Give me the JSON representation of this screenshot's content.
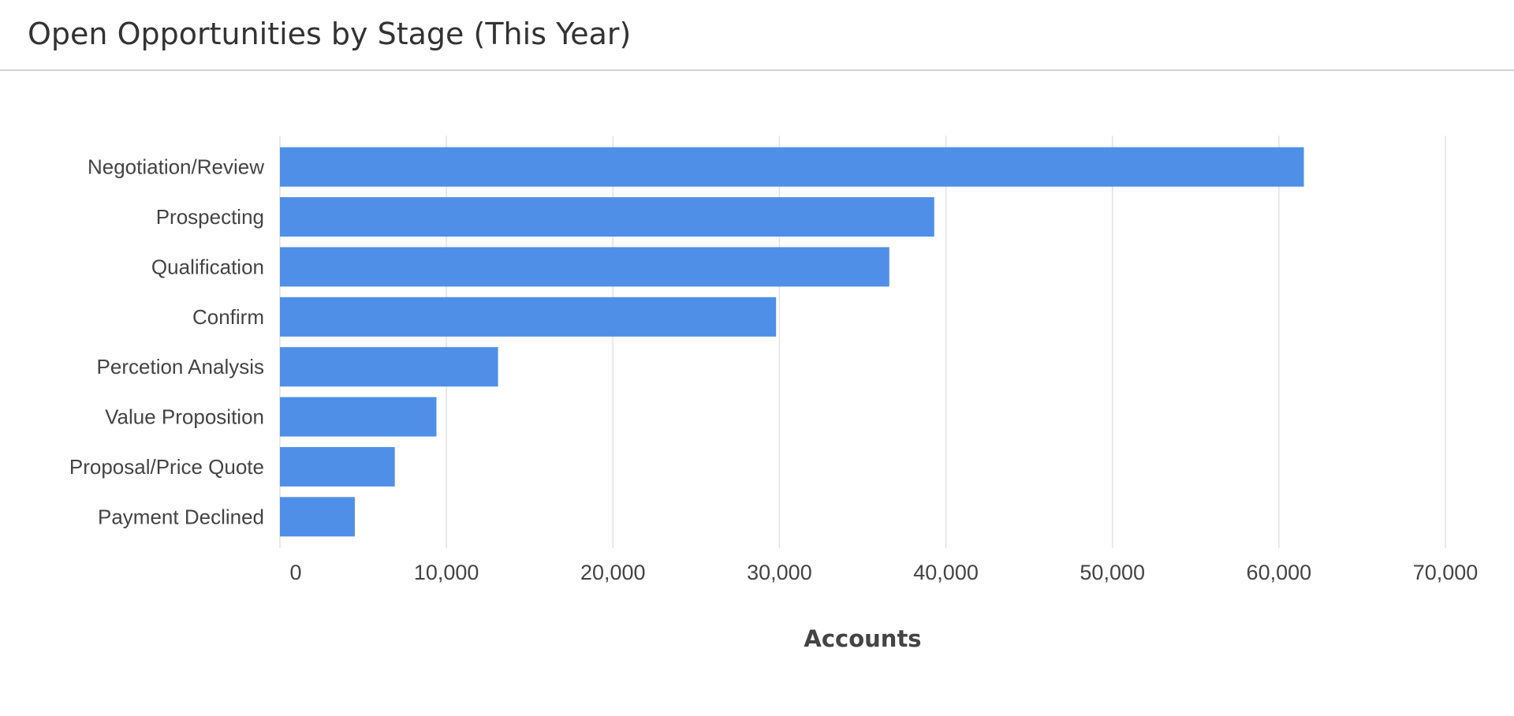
{
  "header": {
    "title": "Open Opportunities by Stage (This Year)"
  },
  "colors": {
    "bar": "#508fe8",
    "grid": "#e3e3e3",
    "text": "#444444"
  },
  "chart_data": {
    "type": "bar",
    "orientation": "horizontal",
    "title": "Open Opportunities by Stage (This Year)",
    "xlabel": "Accounts",
    "ylabel": "",
    "xlim": [
      0,
      70000
    ],
    "x_ticks": [
      0,
      10000,
      20000,
      30000,
      40000,
      50000,
      60000,
      70000
    ],
    "x_tick_labels": [
      "0",
      "10,000",
      "20,000",
      "30,000",
      "40,000",
      "50,000",
      "60,000",
      "70,000"
    ],
    "categories": [
      "Negotiation/Review",
      "Prospecting",
      "Qualification",
      "Confirm",
      "Percetion Analysis",
      "Value Proposition",
      "Proposal/Price Quote",
      "Payment Declined"
    ],
    "values": [
      61500,
      39300,
      36600,
      29800,
      13100,
      9400,
      6900,
      4500
    ],
    "grid": true,
    "legend": "none"
  }
}
